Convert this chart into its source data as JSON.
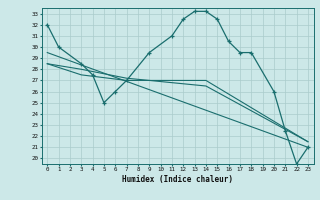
{
  "title": "",
  "xlabel": "Humidex (Indice chaleur)",
  "bg_color": "#cce8e8",
  "grid_color": "#aacccc",
  "line_color": "#1a6e6e",
  "xlim": [
    -0.5,
    23.5
  ],
  "ylim": [
    19.5,
    33.5
  ],
  "xticks": [
    0,
    1,
    2,
    3,
    4,
    5,
    6,
    7,
    8,
    9,
    10,
    11,
    12,
    13,
    14,
    15,
    16,
    17,
    18,
    19,
    20,
    21,
    22,
    23
  ],
  "yticks": [
    20,
    21,
    22,
    23,
    24,
    25,
    26,
    27,
    28,
    29,
    30,
    31,
    32,
    33
  ],
  "line1_x": [
    0,
    1,
    3,
    4,
    5,
    6,
    7,
    9,
    11,
    12,
    13,
    14,
    15,
    16,
    17,
    18,
    20,
    21,
    22,
    23
  ],
  "line1_y": [
    32,
    30,
    28.5,
    27.5,
    25,
    26,
    27,
    29.5,
    31,
    32.5,
    33.2,
    33.2,
    32.5,
    30.5,
    29.5,
    29.5,
    26,
    22.5,
    19.5,
    21
  ],
  "line2_x": [
    0,
    23
  ],
  "line2_y": [
    29.5,
    21.0
  ],
  "line3_x": [
    0,
    3,
    7,
    14,
    23
  ],
  "line3_y": [
    28.5,
    27.5,
    27.0,
    27.0,
    21.5
  ],
  "line4_x": [
    0,
    3,
    7,
    14,
    23
  ],
  "line4_y": [
    28.5,
    28.0,
    27.2,
    26.5,
    21.5
  ]
}
